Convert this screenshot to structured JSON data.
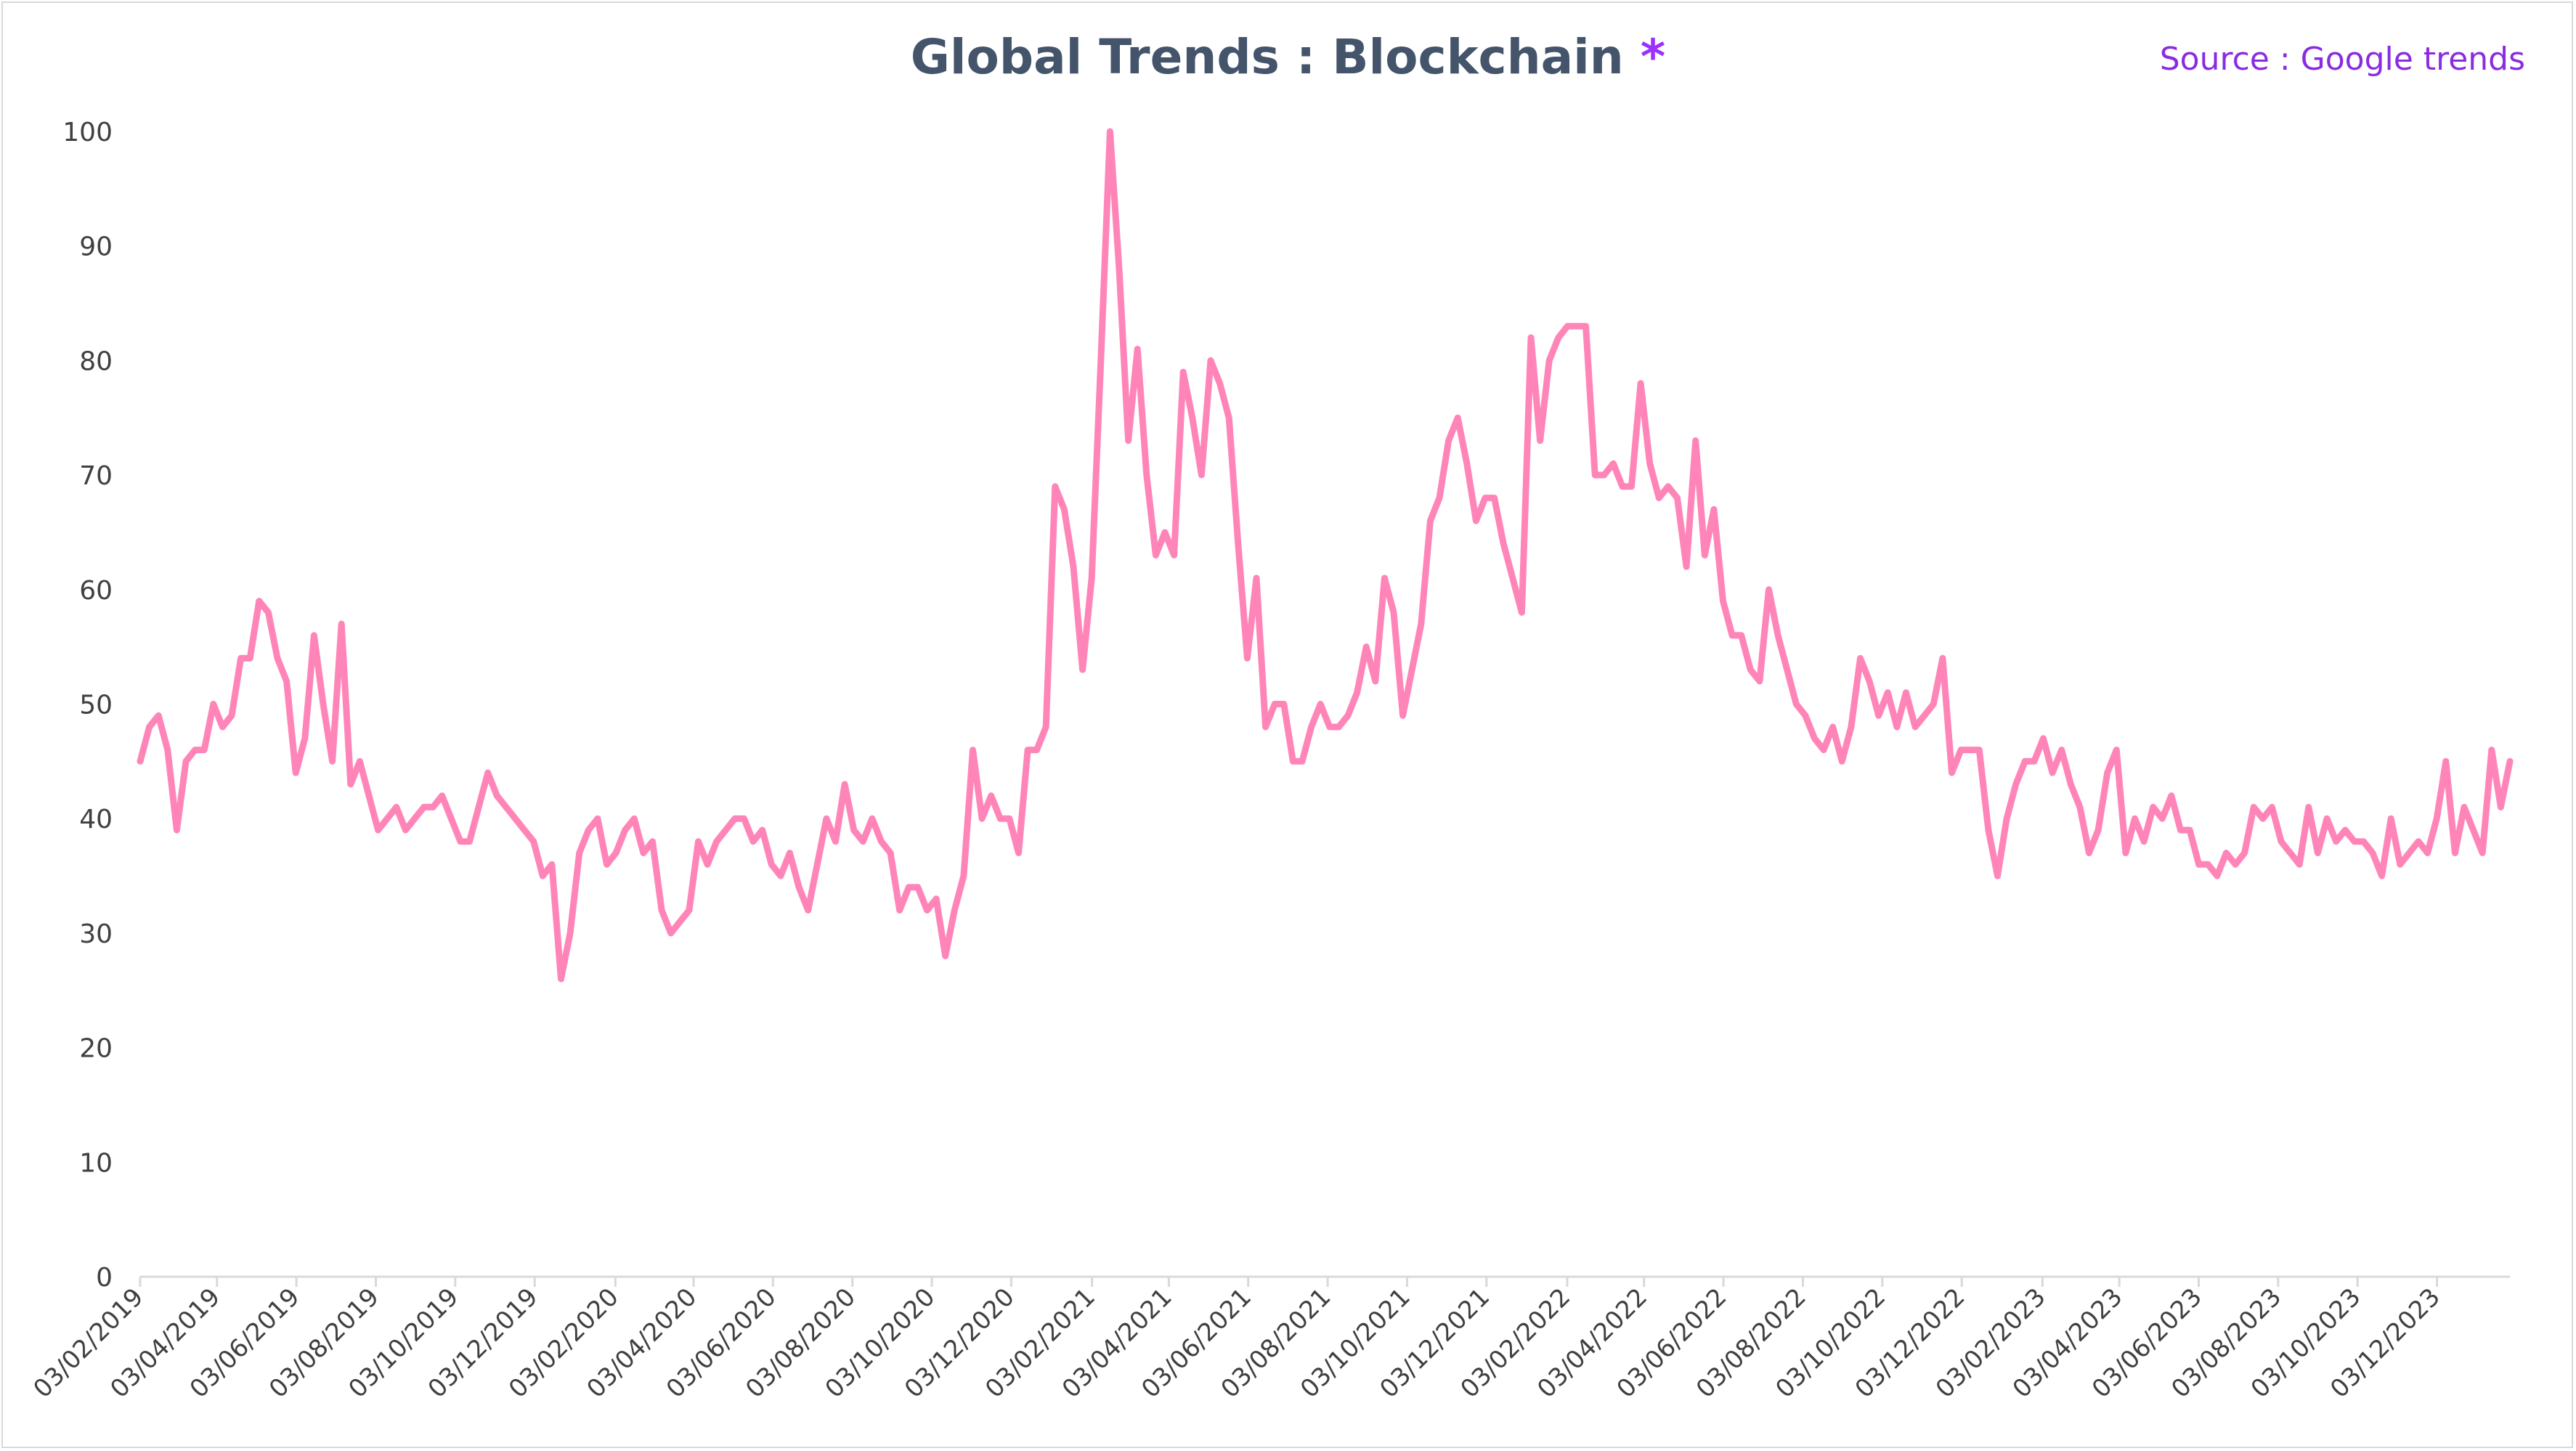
{
  "chart_data": {
    "type": "line",
    "title": "Global Trends : Blockchain",
    "title_marker": "*",
    "source": "Source : Google trends",
    "xlabel": "",
    "ylabel": "",
    "ylim": [
      0,
      100
    ],
    "yticks": [
      0,
      10,
      20,
      30,
      40,
      50,
      60,
      70,
      80,
      90,
      100
    ],
    "grid": false,
    "legend": "none",
    "line_color": "#ff85b8",
    "x_tick_labels": [
      "03/02/2019",
      "03/04/2019",
      "03/06/2019",
      "03/08/2019",
      "03/10/2019",
      "03/12/2019",
      "03/02/2020",
      "03/04/2020",
      "03/06/2020",
      "03/08/2020",
      "03/10/2020",
      "03/12/2020",
      "03/02/2021",
      "03/04/2021",
      "03/06/2021",
      "03/08/2021",
      "03/10/2021",
      "03/12/2021",
      "03/02/2022",
      "03/04/2022",
      "03/06/2022",
      "03/08/2022",
      "03/10/2022",
      "03/12/2022",
      "03/02/2023",
      "03/04/2023",
      "03/06/2023",
      "03/08/2023",
      "03/10/2023",
      "03/12/2023"
    ],
    "x_start": "2019-02-03",
    "x_end": "2024-01-28",
    "series": [
      {
        "values": [
          45,
          48,
          49,
          46,
          39,
          45,
          46,
          46,
          50,
          48,
          49,
          54,
          54,
          59,
          58,
          54,
          52,
          44,
          47,
          56,
          50,
          45,
          57,
          43,
          45,
          42,
          39,
          40,
          41,
          39,
          40,
          41,
          41,
          42,
          40,
          38,
          38,
          41,
          44,
          42,
          41,
          40,
          39,
          38,
          35,
          36,
          26,
          30,
          37,
          39,
          40,
          36,
          37,
          39,
          40,
          37,
          38,
          32,
          30,
          31,
          32,
          38,
          36,
          38,
          39,
          40,
          40,
          38,
          39,
          36,
          35,
          37,
          34,
          32,
          36,
          40,
          38,
          43,
          39,
          38,
          40,
          38,
          37,
          32,
          34,
          34,
          32,
          33,
          28,
          32,
          35,
          46,
          40,
          42,
          40,
          40,
          37,
          46,
          46,
          48,
          69,
          67,
          62,
          53,
          61,
          80,
          100,
          88,
          73,
          81,
          70,
          63,
          65,
          63,
          79,
          75,
          70,
          80,
          78,
          75,
          64,
          54,
          61,
          48,
          50,
          50,
          45,
          45,
          48,
          50,
          48,
          48,
          49,
          51,
          55,
          52,
          61,
          58,
          49,
          53,
          57,
          66,
          68,
          73,
          75,
          71,
          66,
          68,
          68,
          64,
          61,
          58,
          82,
          73,
          80,
          82,
          83,
          83,
          83,
          70,
          70,
          71,
          69,
          69,
          78,
          71,
          68,
          69,
          68,
          62,
          73,
          63,
          67,
          59,
          56,
          56,
          53,
          52,
          60,
          56,
          53,
          50,
          49,
          47,
          46,
          48,
          45,
          48,
          54,
          52,
          49,
          51,
          48,
          51,
          48,
          49,
          50,
          54,
          44,
          46,
          46,
          46,
          39,
          35,
          40,
          43,
          45,
          45,
          47,
          44,
          46,
          43,
          41,
          37,
          39,
          44,
          46,
          37,
          40,
          38,
          41,
          40,
          42,
          39,
          39,
          36,
          36,
          35,
          37,
          36,
          37,
          41,
          40,
          41,
          38,
          37,
          36,
          41,
          37,
          40,
          38,
          39,
          38,
          38,
          37,
          35,
          40,
          36,
          37,
          38,
          37,
          40,
          45,
          37,
          41,
          39,
          37,
          46,
          41,
          45
        ]
      }
    ]
  }
}
